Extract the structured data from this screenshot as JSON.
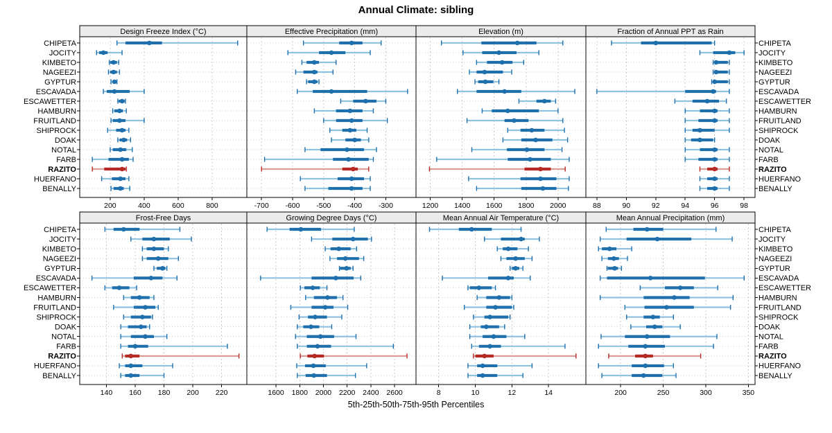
{
  "title": "Annual Climate: sibling",
  "caption": "5th-25th-50th-75th-95th Percentiles",
  "highlighted_station": "RAZITO",
  "stations": [
    "CHIPETA",
    "JOCITY",
    "KIMBETO",
    "NAGEEZI",
    "GYPTUR",
    "ESCAVADA",
    "ESCAWETTER",
    "HAMBURN",
    "FRUITLAND",
    "SHIPROCK",
    "DOAK",
    "NOTAL",
    "FARB",
    "RAZITO",
    "HUERFANO",
    "BENALLY"
  ],
  "colors": {
    "series_dark": "#1E6FAC",
    "series_light": "#8FC2E0",
    "highlight_dark": "#B52A25",
    "highlight_light": "#DC9B95",
    "strip_bg": "#EBEBEB",
    "panel_border": "#000000",
    "grid": "#CBCBCB",
    "text": "#000000"
  },
  "chart_data": {
    "type": "dotplot-intervals",
    "percentile_order": [
      "5th",
      "25th",
      "50th",
      "75th",
      "95th"
    ],
    "note": "values arrays are [p5,p25,p50,p75,p95] aligned with stations list",
    "panels": [
      {
        "title": "Design Freeze Index (°C)",
        "grid_row": 1,
        "xlim": [
          25,
          1000
        ],
        "xticks": [
          200,
          400,
          600,
          800
        ],
        "values": [
          [
            240,
            290,
            430,
            505,
            950
          ],
          [
            120,
            135,
            160,
            185,
            270
          ],
          [
            195,
            200,
            220,
            240,
            250
          ],
          [
            190,
            200,
            220,
            240,
            255
          ],
          [
            205,
            215,
            225,
            230,
            240
          ],
          [
            160,
            180,
            225,
            315,
            400
          ],
          [
            245,
            250,
            270,
            285,
            290
          ],
          [
            215,
            225,
            255,
            275,
            295
          ],
          [
            205,
            215,
            255,
            290,
            400
          ],
          [
            185,
            235,
            270,
            290,
            310
          ],
          [
            245,
            255,
            280,
            300,
            320
          ],
          [
            200,
            215,
            260,
            295,
            330
          ],
          [
            95,
            190,
            270,
            310,
            335
          ],
          [
            95,
            165,
            270,
            290,
            295
          ],
          [
            150,
            210,
            260,
            290,
            310
          ],
          [
            205,
            220,
            260,
            280,
            315
          ]
        ]
      },
      {
        "title": "Effective Precipitation (mm)",
        "grid_row": 1,
        "xlim": [
          -745,
          -205
        ],
        "xticks": [
          -700,
          -600,
          -500,
          -400,
          -300
        ],
        "values": [
          [
            -565,
            -450,
            -410,
            -375,
            -315
          ],
          [
            -615,
            -515,
            -475,
            -430,
            -350
          ],
          [
            -570,
            -555,
            -530,
            -515,
            -460
          ],
          [
            -590,
            -565,
            -530,
            -520,
            -470
          ],
          [
            -555,
            -550,
            -530,
            -520,
            -515
          ],
          [
            -585,
            -535,
            -475,
            -360,
            -230
          ],
          [
            -445,
            -405,
            -365,
            -330,
            -300
          ],
          [
            -530,
            -460,
            -415,
            -375,
            -340
          ],
          [
            -500,
            -460,
            -410,
            -375,
            -295
          ],
          [
            -480,
            -440,
            -415,
            -395,
            -360
          ],
          [
            -475,
            -430,
            -400,
            -380,
            -355
          ],
          [
            -560,
            -510,
            -425,
            -370,
            -330
          ],
          [
            -690,
            -470,
            -420,
            -355,
            -340
          ],
          [
            -700,
            -440,
            -405,
            -390,
            -355
          ],
          [
            -575,
            -455,
            -410,
            -370,
            -350
          ],
          [
            -560,
            -485,
            -410,
            -375,
            -350
          ]
        ]
      },
      {
        "title": "Elevation (m)",
        "grid_row": 1,
        "xlim": [
          1115,
          2170
        ],
        "xticks": [
          1200,
          1400,
          1600,
          1800,
          2000
        ],
        "values": [
          [
            1270,
            1520,
            1745,
            1865,
            2030
          ],
          [
            1405,
            1525,
            1630,
            1740,
            1880
          ],
          [
            1490,
            1555,
            1650,
            1715,
            1785
          ],
          [
            1445,
            1490,
            1540,
            1655,
            1710
          ],
          [
            1480,
            1500,
            1545,
            1595,
            1630
          ],
          [
            1370,
            1490,
            1665,
            1770,
            2105
          ],
          [
            1755,
            1865,
            1915,
            1955,
            1985
          ],
          [
            1525,
            1585,
            1685,
            1880,
            2000
          ],
          [
            1430,
            1665,
            1725,
            1815,
            2030
          ],
          [
            1685,
            1765,
            1835,
            1915,
            2040
          ],
          [
            1655,
            1770,
            1860,
            1965,
            2060
          ],
          [
            1460,
            1680,
            1805,
            1915,
            2025
          ],
          [
            1240,
            1685,
            1825,
            1955,
            2070
          ],
          [
            1195,
            1790,
            1890,
            1955,
            2045
          ],
          [
            1440,
            1765,
            1890,
            1990,
            2070
          ],
          [
            1490,
            1770,
            1905,
            1990,
            2065
          ]
        ]
      },
      {
        "title": "Fraction of Annual PPT as Rain",
        "grid_row": 1,
        "xlim": [
          87.3,
          98.7
        ],
        "xticks": [
          88,
          90,
          92,
          94,
          96,
          98
        ],
        "values": [
          [
            89,
            91,
            92,
            95.8,
            96
          ],
          [
            95,
            95.9,
            97,
            97.4,
            98
          ],
          [
            95.9,
            96,
            96.1,
            96.9,
            97
          ],
          [
            95.9,
            96,
            96.1,
            96.9,
            97
          ],
          [
            95.8,
            95.9,
            96,
            96.9,
            97
          ],
          [
            88,
            94,
            95.9,
            96.1,
            97
          ],
          [
            93.3,
            94.5,
            95.5,
            96.3,
            96.8
          ],
          [
            94,
            95,
            96,
            96.2,
            97
          ],
          [
            94,
            94.9,
            96,
            96.2,
            97
          ],
          [
            94,
            94.5,
            95,
            96,
            97
          ],
          [
            94,
            94.4,
            95,
            95.9,
            96
          ],
          [
            94,
            95,
            96,
            96.2,
            97
          ],
          [
            94,
            94.9,
            96,
            96.2,
            97
          ],
          [
            95,
            95.5,
            96,
            96.2,
            97
          ],
          [
            95,
            95.5,
            96,
            96.2,
            97
          ],
          [
            95,
            95.5,
            96,
            96.2,
            97
          ]
        ]
      },
      {
        "title": "Frost-Free Days",
        "grid_row": 2,
        "xlim": [
          122,
          237
        ],
        "xticks": [
          140,
          160,
          180,
          200,
          220
        ],
        "values": [
          [
            139,
            145,
            152,
            163,
            191
          ],
          [
            157,
            165,
            173,
            184,
            199
          ],
          [
            165,
            168,
            173,
            180,
            183
          ],
          [
            165,
            168,
            176,
            183,
            190
          ],
          [
            173,
            175,
            179,
            181,
            182
          ],
          [
            130,
            159,
            171,
            179,
            189
          ],
          [
            139,
            144,
            149,
            156,
            161
          ],
          [
            152,
            157,
            163,
            170,
            173
          ],
          [
            145,
            159,
            167,
            174,
            176
          ],
          [
            152,
            157,
            165,
            171,
            172
          ],
          [
            150,
            155,
            164,
            168,
            170
          ],
          [
            150,
            157,
            167,
            173,
            182
          ],
          [
            150,
            155,
            160,
            169,
            224
          ],
          [
            151,
            153,
            157,
            163,
            232
          ],
          [
            149,
            153,
            157,
            165,
            186
          ],
          [
            150,
            153,
            157,
            163,
            180
          ]
        ]
      },
      {
        "title": "Growing Degree Days (°C)",
        "grid_row": 2,
        "xlim": [
          1360,
          2775
        ],
        "xticks": [
          1600,
          1800,
          2000,
          2200,
          2400,
          2600
        ],
        "values": [
          [
            1525,
            1715,
            1810,
            1980,
            2260
          ],
          [
            1900,
            2075,
            2250,
            2375,
            2405
          ],
          [
            2015,
            2060,
            2130,
            2230,
            2280
          ],
          [
            2055,
            2115,
            2185,
            2300,
            2340
          ],
          [
            2135,
            2140,
            2195,
            2230,
            2250
          ],
          [
            1470,
            1900,
            2105,
            2255,
            2315
          ],
          [
            1805,
            1840,
            1910,
            1970,
            2030
          ],
          [
            1850,
            1920,
            2035,
            2115,
            2165
          ],
          [
            1725,
            1900,
            2015,
            2085,
            2205
          ],
          [
            1795,
            1870,
            1930,
            2030,
            2155
          ],
          [
            1780,
            1830,
            1895,
            1965,
            2070
          ],
          [
            1765,
            1860,
            1975,
            2090,
            2275
          ],
          [
            1780,
            1860,
            1950,
            2065,
            2590
          ],
          [
            1805,
            1865,
            1925,
            2005,
            2705
          ],
          [
            1775,
            1845,
            1915,
            2020,
            2365
          ],
          [
            1780,
            1850,
            1920,
            2030,
            2270
          ]
        ]
      },
      {
        "title": "Mean Annual Air Temperature (°C)",
        "grid_row": 2,
        "xlim": [
          6.8,
          16.0
        ],
        "xticks": [
          8,
          10,
          12,
          14
        ],
        "values": [
          [
            7.5,
            9.1,
            9.8,
            10.9,
            12.5
          ],
          [
            10.5,
            11.4,
            12.5,
            12.7,
            13.5
          ],
          [
            11.2,
            11.5,
            11.8,
            12.3,
            12.9
          ],
          [
            11.4,
            11.7,
            12.2,
            12.7,
            13.1
          ],
          [
            11.9,
            12.0,
            12.2,
            12.4,
            12.6
          ],
          [
            8.2,
            10.7,
            11.8,
            12.1,
            13.0
          ],
          [
            9.6,
            9.7,
            10.2,
            10.9,
            11.1
          ],
          [
            10.1,
            10.6,
            11.3,
            11.9,
            12.0
          ],
          [
            9.4,
            10.6,
            11.1,
            12.0,
            12.1
          ],
          [
            9.9,
            10.5,
            10.8,
            11.8,
            11.9
          ],
          [
            9.7,
            10.3,
            10.6,
            11.3,
            11.6
          ],
          [
            9.7,
            10.4,
            11.0,
            11.7,
            12.7
          ],
          [
            9.8,
            10.2,
            10.8,
            11.4,
            14.9
          ],
          [
            9.9,
            10.0,
            10.5,
            11.0,
            15.5
          ],
          [
            9.6,
            10.1,
            10.4,
            11.2,
            13.1
          ],
          [
            9.6,
            10.1,
            10.4,
            11.2,
            12.6
          ]
        ]
      },
      {
        "title": "Mean Annual Precipitation (mm)",
        "grid_row": 2,
        "xlim": [
          160,
          357
        ],
        "xticks": [
          200,
          250,
          300,
          350
        ],
        "values": [
          [
            183,
            215,
            231,
            250,
            312
          ],
          [
            176,
            207,
            243,
            283,
            331
          ],
          [
            174,
            178,
            187,
            195,
            213
          ],
          [
            178,
            185,
            192,
            198,
            208
          ],
          [
            184,
            185,
            193,
            197,
            201
          ],
          [
            176,
            184,
            235,
            299,
            345
          ],
          [
            223,
            252,
            270,
            286,
            314
          ],
          [
            176,
            227,
            263,
            281,
            332
          ],
          [
            205,
            228,
            254,
            286,
            329
          ],
          [
            207,
            227,
            238,
            246,
            262
          ],
          [
            212,
            230,
            240,
            249,
            270
          ],
          [
            177,
            205,
            231,
            258,
            313
          ],
          [
            174,
            209,
            229,
            252,
            309
          ],
          [
            186,
            217,
            229,
            238,
            294
          ],
          [
            174,
            213,
            229,
            251,
            262
          ],
          [
            178,
            213,
            227,
            249,
            265
          ]
        ]
      }
    ]
  }
}
